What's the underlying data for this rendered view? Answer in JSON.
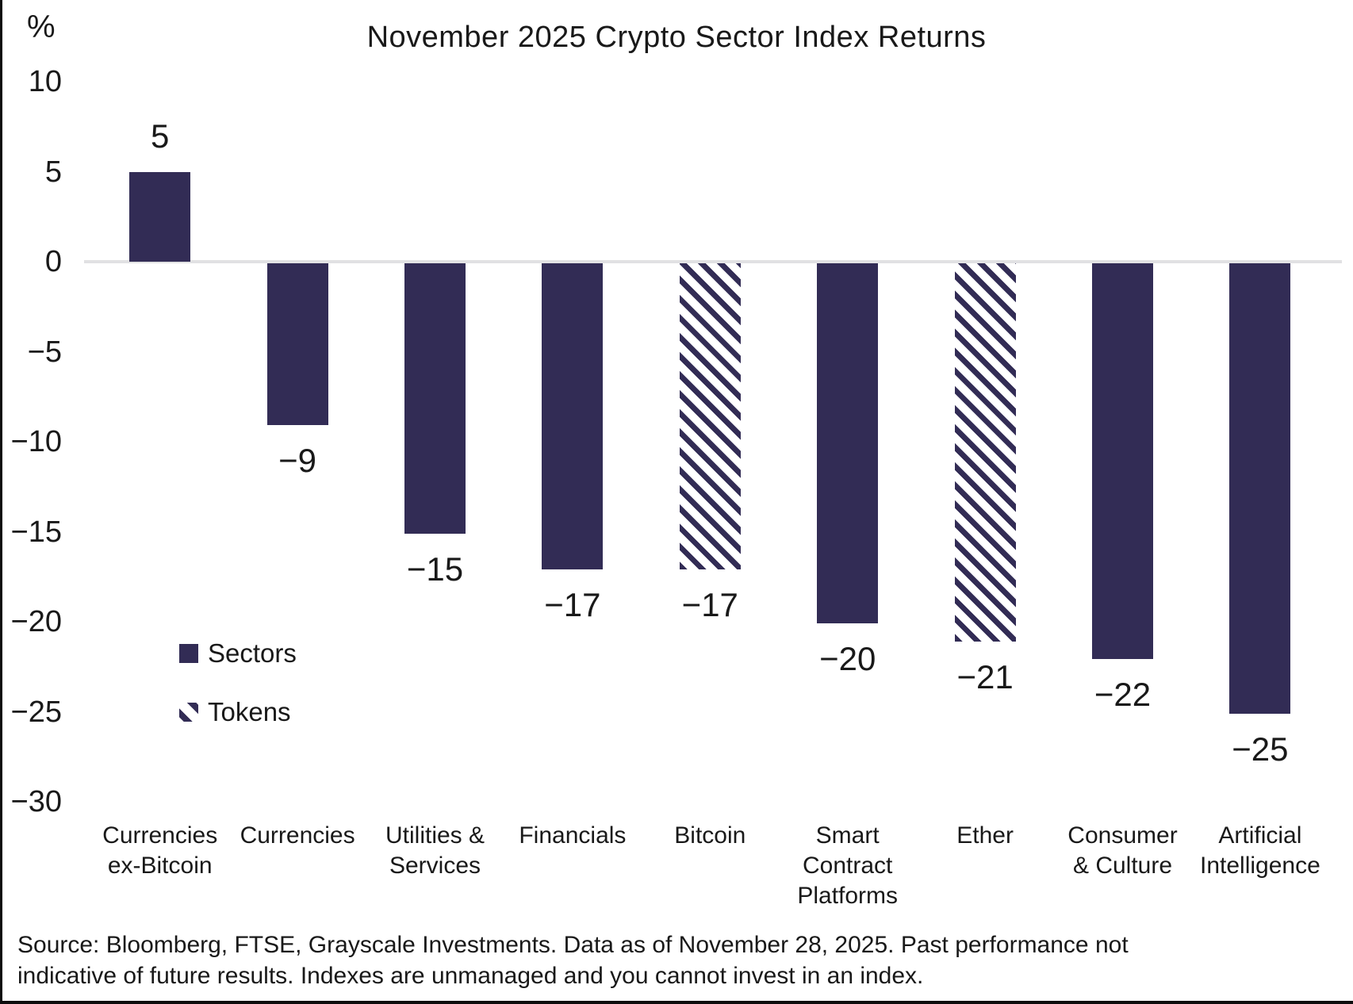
{
  "title": "November 2025 Crypto Sector Index Returns",
  "y_axis_unit": "%",
  "legend": {
    "sectors_label": "Sectors",
    "tokens_label": "Tokens"
  },
  "source": {
    "line1": "Source: Bloomberg, FTSE, Grayscale Investments. Data as of November 28, 2025. Past performance not",
    "line2": "indicative of future results. Indexes are unmanaged and you cannot invest in an index."
  },
  "colors": {
    "bar_navy": "#322c55",
    "zero_line": "#e1e1e3",
    "text": "#191919",
    "frame": "#0c0c0c",
    "background": "#ffffff"
  },
  "chart_data": {
    "type": "bar",
    "title": "November 2025 Crypto Sector Index Returns",
    "xlabel": "",
    "ylabel": "%",
    "ylim": [
      -30,
      10
    ],
    "yticks": [
      10,
      5,
      0,
      -5,
      -10,
      -15,
      -20,
      -25,
      -30
    ],
    "ytick_labels": [
      "10",
      "5",
      "0",
      "−5",
      "−10",
      "−15",
      "−20",
      "−25",
      "−30"
    ],
    "grid": "zero-line-only",
    "legend_position": "middle-left",
    "categories": [
      "Currencies ex-Bitcoin",
      "Currencies",
      "Utilities & Services",
      "Financials",
      "Bitcoin",
      "Smart Contract Platforms",
      "Ether",
      "Consumer & Culture",
      "Artificial Intelligence"
    ],
    "values": [
      5,
      -9,
      -15,
      -17,
      -17,
      -20,
      -21,
      -22,
      -25
    ],
    "series": [
      {
        "name": "Sectors",
        "style": "solid",
        "categories": [
          "Currencies ex-Bitcoin",
          "Currencies",
          "Utilities & Services",
          "Financials",
          "Smart Contract Platforms",
          "Consumer & Culture",
          "Artificial Intelligence"
        ],
        "values": [
          5,
          -9,
          -15,
          -17,
          -20,
          -22,
          -25
        ]
      },
      {
        "name": "Tokens",
        "style": "hatched",
        "categories": [
          "Bitcoin",
          "Ether"
        ],
        "values": [
          -17,
          -21
        ]
      }
    ],
    "bars": [
      {
        "category": "Currencies ex-Bitcoin",
        "label_lines": [
          "Currencies",
          "ex-Bitcoin"
        ],
        "value": 5,
        "display": "5",
        "series": "Sectors",
        "style": "solid"
      },
      {
        "category": "Currencies",
        "label_lines": [
          "Currencies"
        ],
        "value": -9,
        "display": "−9",
        "series": "Sectors",
        "style": "solid"
      },
      {
        "category": "Utilities & Services",
        "label_lines": [
          "Utilities &",
          "Services"
        ],
        "value": -15,
        "display": "−15",
        "series": "Sectors",
        "style": "solid"
      },
      {
        "category": "Financials",
        "label_lines": [
          "Financials"
        ],
        "value": -17,
        "display": "−17",
        "series": "Sectors",
        "style": "solid"
      },
      {
        "category": "Bitcoin",
        "label_lines": [
          "Bitcoin"
        ],
        "value": -17,
        "display": "−17",
        "series": "Tokens",
        "style": "hatched"
      },
      {
        "category": "Smart Contract Platforms",
        "label_lines": [
          "Smart",
          "Contract",
          "Platforms"
        ],
        "value": -20,
        "display": "−20",
        "series": "Sectors",
        "style": "solid"
      },
      {
        "category": "Ether",
        "label_lines": [
          "Ether"
        ],
        "value": -21,
        "display": "−21",
        "series": "Tokens",
        "style": "hatched"
      },
      {
        "category": "Consumer & Culture",
        "label_lines": [
          "Consumer",
          "& Culture"
        ],
        "value": -22,
        "display": "−22",
        "series": "Sectors",
        "style": "solid"
      },
      {
        "category": "Artificial Intelligence",
        "label_lines": [
          "Artificial",
          "Intelligence"
        ],
        "value": -25,
        "display": "−25",
        "series": "Sectors",
        "style": "solid"
      }
    ]
  }
}
